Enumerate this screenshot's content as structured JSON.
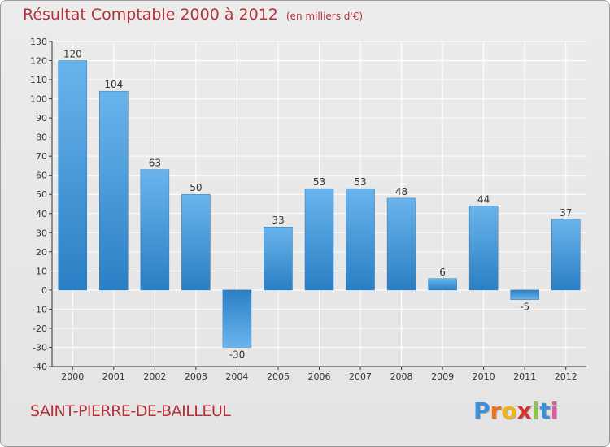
{
  "title": "Résultat Comptable 2000 à 2012",
  "unit": "(en milliers d'€)",
  "town": "SAINT-PIERRE-DE-BAILLEUL",
  "logo": {
    "letters": [
      "P",
      "r",
      "o",
      "x",
      "i",
      "t",
      "i"
    ],
    "colors": [
      "#3a8fd6",
      "#e8731a",
      "#f2b21c",
      "#d6322f",
      "#8cc63f",
      "#3a8fd6",
      "#e05aa0"
    ]
  },
  "colors": {
    "bar_light": "#6ab4ec",
    "bar_dark": "#2a7fc4",
    "text": "#b5313a",
    "axis": "#333333",
    "grid": "#ffffff"
  },
  "chart_data": {
    "type": "bar",
    "title": "Résultat Comptable 2000 à 2012",
    "ylabel": "(en milliers d'€)",
    "xlabel": "",
    "categories": [
      "2000",
      "2001",
      "2002",
      "2003",
      "2004",
      "2005",
      "2006",
      "2007",
      "2008",
      "2009",
      "2010",
      "2011",
      "2012"
    ],
    "values": [
      120,
      104,
      63,
      50,
      -30,
      33,
      53,
      53,
      48,
      6,
      44,
      -5,
      37
    ],
    "value_labels": [
      "120",
      "104",
      "63",
      "50",
      "-30",
      "33",
      "53",
      "53",
      "48",
      "6",
      "44",
      "-5",
      "37"
    ],
    "ylim": [
      -40,
      130
    ],
    "yticks": [
      -40,
      -30,
      -20,
      -10,
      0,
      10,
      20,
      30,
      40,
      50,
      60,
      70,
      80,
      90,
      100,
      110,
      120,
      130
    ],
    "grid": true
  }
}
